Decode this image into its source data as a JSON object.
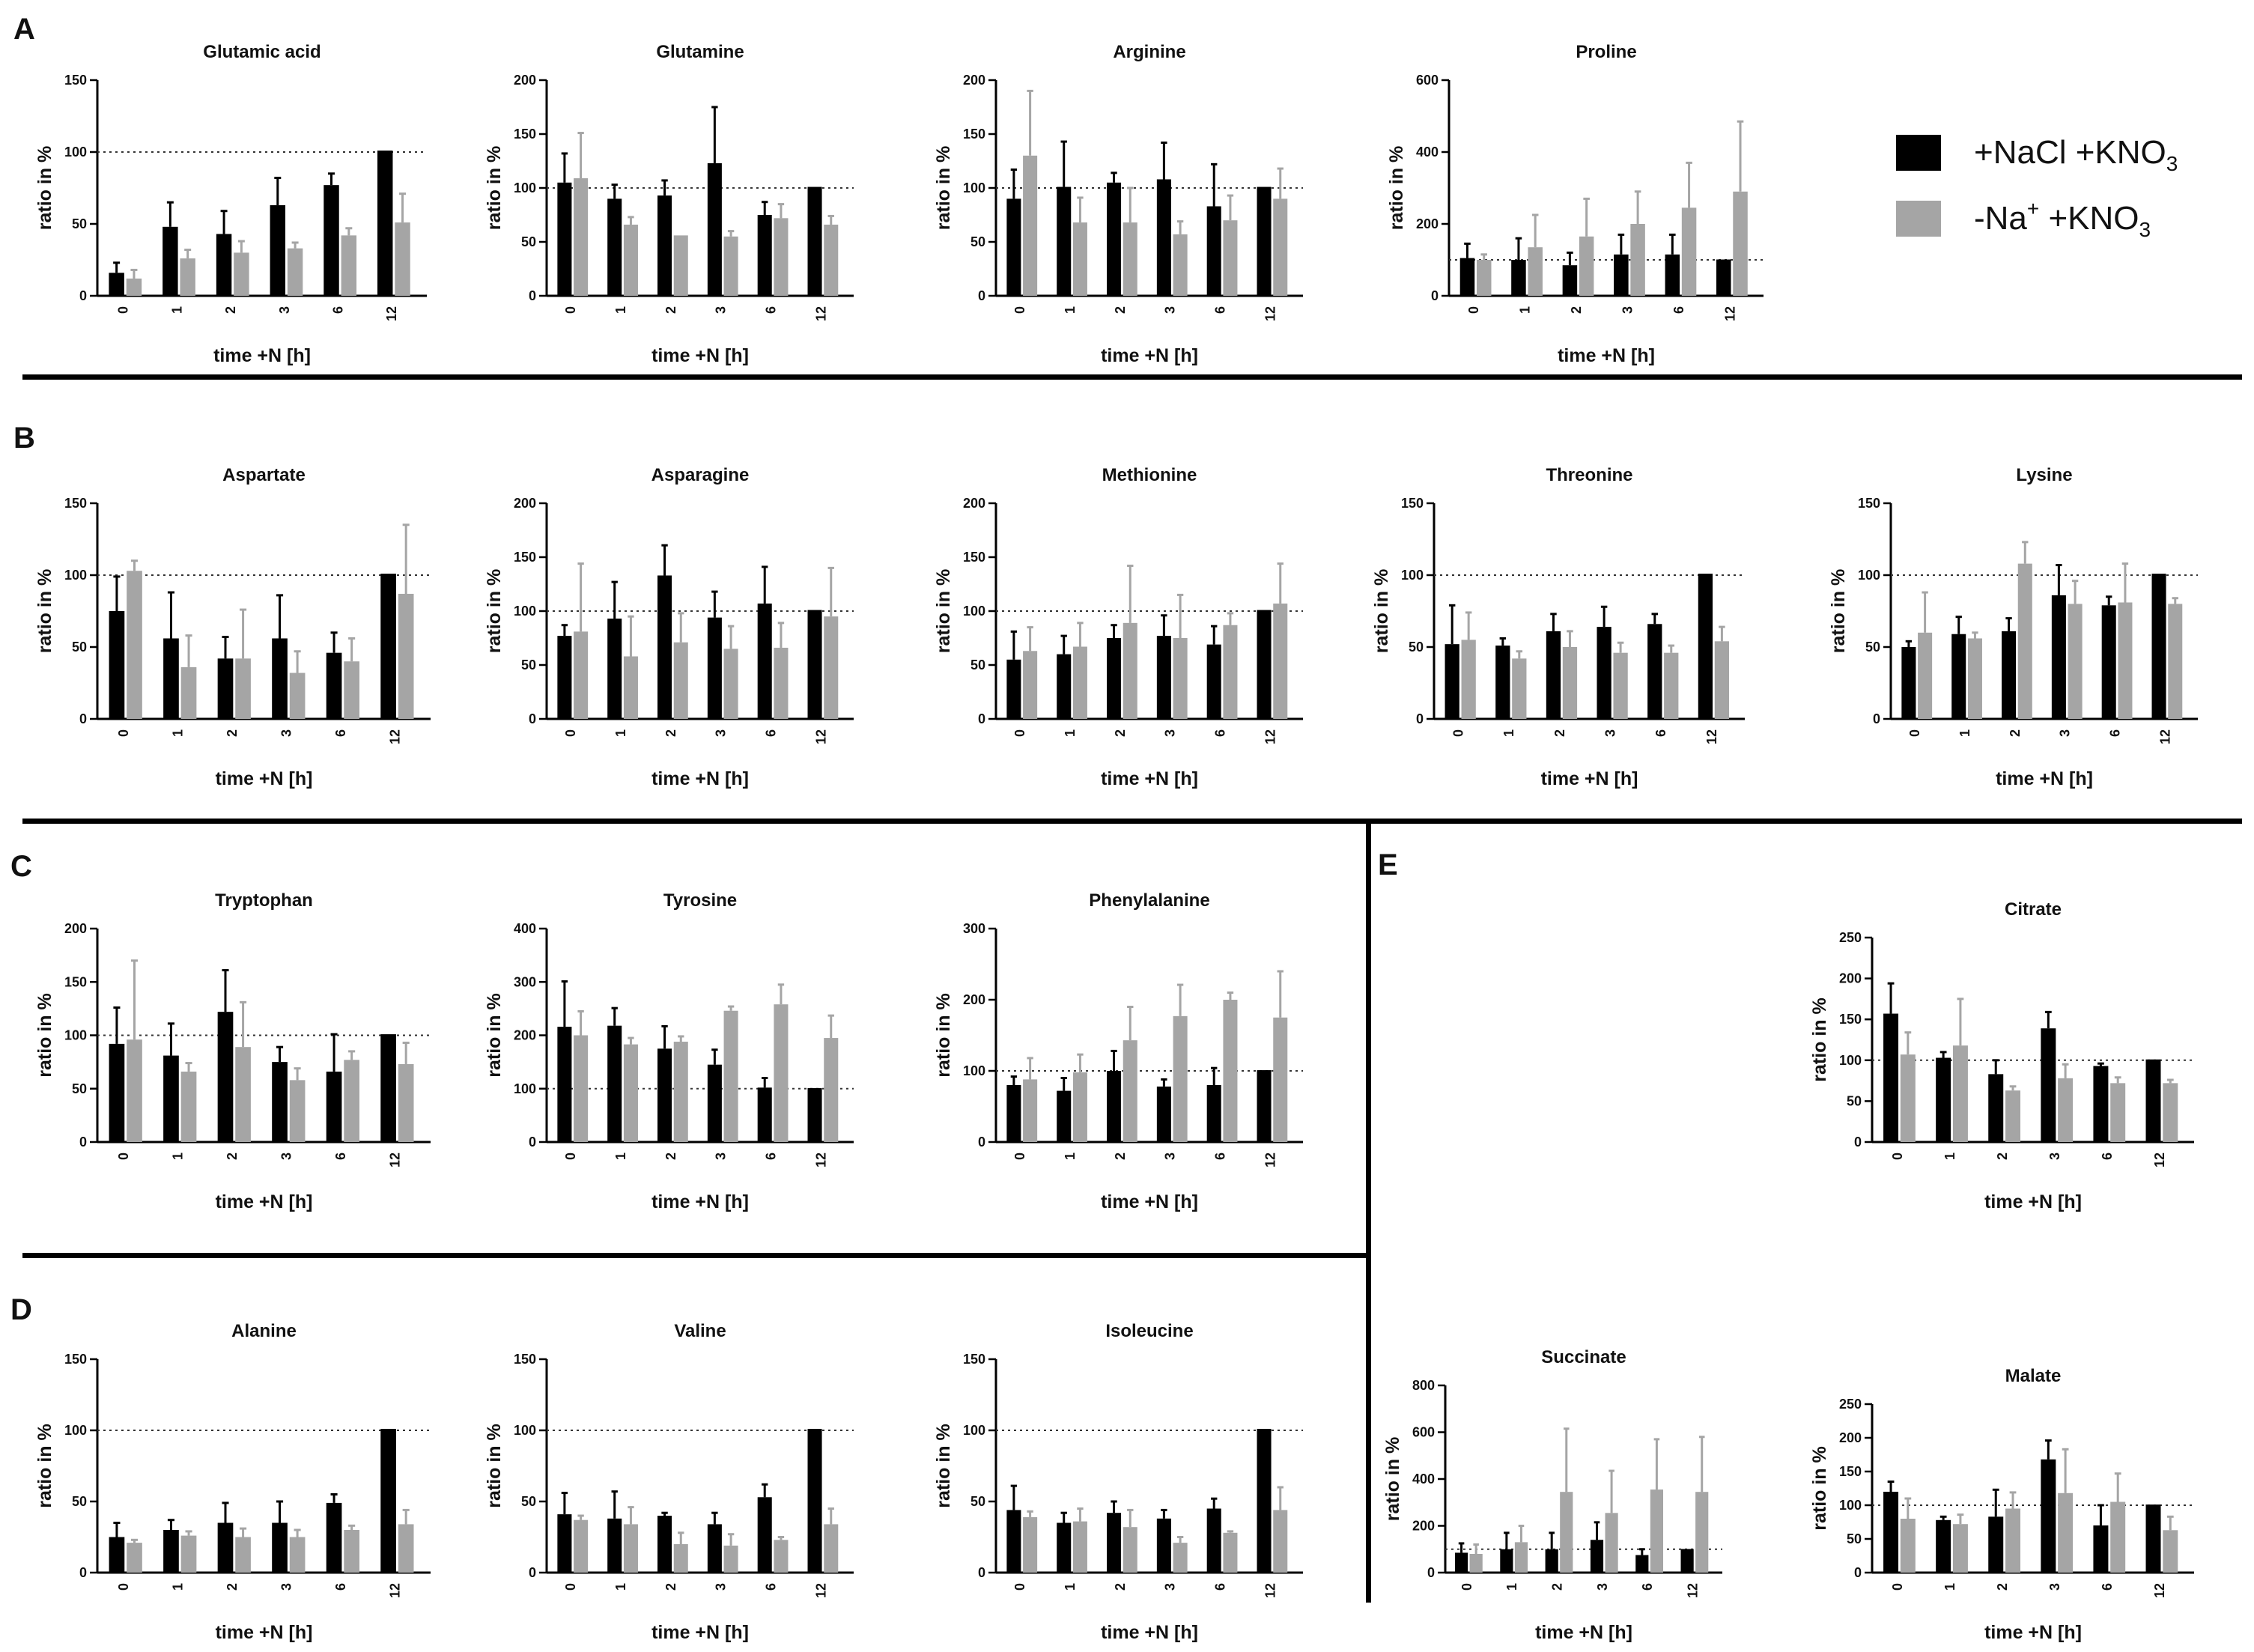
{
  "colors": {
    "nacl": "#000000",
    "na_free": "#a5a5a5",
    "divider": "#000000"
  },
  "panel_labels": [
    "A",
    "B",
    "C",
    "D",
    "E"
  ],
  "legend": [
    {
      "label": "+NaCl +KNO",
      "sub": "3",
      "color": "#000000"
    },
    {
      "label": "-Na",
      "sup": "+",
      "tail": " +KNO",
      "sub": "3",
      "color": "#a5a5a5"
    }
  ],
  "chart_data": [
    {
      "type": "bar",
      "title": "Glutamic acid",
      "xlabel": "time +N [h]",
      "ylabel": "ratio in %",
      "categories": [
        "0",
        "1",
        "2",
        "3",
        "6",
        "12"
      ],
      "ylim": [
        0,
        150
      ],
      "yticks": [
        0,
        50,
        100,
        150
      ],
      "reference_line": 100,
      "series": [
        {
          "name": "+NaCl +KNO3",
          "values": [
            16,
            48,
            43,
            63,
            77,
            101
          ],
          "errors": [
            7,
            17,
            16,
            19,
            8,
            0
          ]
        },
        {
          "name": "-Na+ +KNO3",
          "values": [
            12,
            26,
            30,
            33,
            42,
            51
          ],
          "errors": [
            6,
            6,
            8,
            4,
            5,
            20
          ]
        }
      ]
    },
    {
      "type": "bar",
      "title": "Glutamine",
      "xlabel": "time +N [h]",
      "ylabel": "ratio in %",
      "categories": [
        "0",
        "1",
        "2",
        "3",
        "6",
        "12"
      ],
      "ylim": [
        0,
        200
      ],
      "yticks": [
        0,
        50,
        100,
        150,
        200
      ],
      "reference_line": 100,
      "series": [
        {
          "name": "+NaCl +KNO3",
          "values": [
            105,
            90,
            93,
            123,
            75,
            101
          ],
          "errors": [
            27,
            13,
            14,
            52,
            12,
            0
          ]
        },
        {
          "name": "-Na+ +KNO3",
          "values": [
            109,
            66,
            56,
            55,
            72,
            66
          ],
          "errors": [
            42,
            7,
            0,
            5,
            13,
            8
          ]
        }
      ]
    },
    {
      "type": "bar",
      "title": "Arginine",
      "xlabel": "time +N [h]",
      "ylabel": "ratio in %",
      "categories": [
        "0",
        "1",
        "2",
        "3",
        "6",
        "12"
      ],
      "ylim": [
        0,
        200
      ],
      "yticks": [
        0,
        50,
        100,
        150,
        200
      ],
      "reference_line": 100,
      "series": [
        {
          "name": "+NaCl +KNO3",
          "values": [
            90,
            101,
            105,
            108,
            83,
            101
          ],
          "errors": [
            27,
            42,
            9,
            34,
            39,
            0
          ]
        },
        {
          "name": "-Na+ +KNO3",
          "values": [
            130,
            68,
            68,
            57,
            70,
            90
          ],
          "errors": [
            60,
            23,
            32,
            12,
            23,
            28
          ]
        }
      ]
    },
    {
      "type": "bar",
      "title": "Proline",
      "xlabel": "time +N [h]",
      "ylabel": "ratio in %",
      "categories": [
        "0",
        "1",
        "2",
        "3",
        "6",
        "12"
      ],
      "ylim": [
        0,
        600
      ],
      "yticks": [
        0,
        200,
        400,
        600
      ],
      "reference_line": 100,
      "series": [
        {
          "name": "+NaCl +KNO3",
          "values": [
            105,
            100,
            85,
            115,
            115,
            101
          ],
          "errors": [
            40,
            60,
            35,
            55,
            55,
            0
          ]
        },
        {
          "name": "-Na+ +KNO3",
          "values": [
            100,
            135,
            165,
            200,
            245,
            290
          ],
          "errors": [
            15,
            90,
            105,
            90,
            125,
            195
          ]
        }
      ]
    },
    {
      "type": "bar",
      "title": "Aspartate",
      "xlabel": "time +N [h]",
      "ylabel": "ratio in %",
      "categories": [
        "0",
        "1",
        "2",
        "3",
        "6",
        "12"
      ],
      "ylim": [
        0,
        150
      ],
      "yticks": [
        0,
        50,
        100,
        150
      ],
      "reference_line": 100,
      "series": [
        {
          "name": "+NaCl +KNO3",
          "values": [
            75,
            56,
            42,
            56,
            46,
            101
          ],
          "errors": [
            24,
            32,
            15,
            30,
            14,
            0
          ]
        },
        {
          "name": "-Na+ +KNO3",
          "values": [
            103,
            36,
            42,
            32,
            40,
            87
          ],
          "errors": [
            7,
            22,
            34,
            15,
            16,
            48
          ]
        }
      ]
    },
    {
      "type": "bar",
      "title": "Asparagine",
      "xlabel": "time +N [h]",
      "ylabel": "ratio in %",
      "categories": [
        "0",
        "1",
        "2",
        "3",
        "6",
        "12"
      ],
      "ylim": [
        0,
        200
      ],
      "yticks": [
        0,
        50,
        100,
        150,
        200
      ],
      "reference_line": 100,
      "series": [
        {
          "name": "+NaCl +KNO3",
          "values": [
            77,
            93,
            133,
            94,
            107,
            101
          ],
          "errors": [
            10,
            34,
            28,
            24,
            34,
            0
          ]
        },
        {
          "name": "-Na+ +KNO3",
          "values": [
            81,
            58,
            71,
            65,
            66,
            95
          ],
          "errors": [
            63,
            37,
            27,
            21,
            23,
            45
          ]
        }
      ]
    },
    {
      "type": "bar",
      "title": "Methionine",
      "xlabel": "time +N [h]",
      "ylabel": "ratio in %",
      "categories": [
        "0",
        "1",
        "2",
        "3",
        "6",
        "12"
      ],
      "ylim": [
        0,
        200
      ],
      "yticks": [
        0,
        50,
        100,
        150,
        200
      ],
      "reference_line": 100,
      "series": [
        {
          "name": "+NaCl +KNO3",
          "values": [
            55,
            60,
            75,
            77,
            69,
            101
          ],
          "errors": [
            26,
            17,
            12,
            19,
            17,
            0
          ]
        },
        {
          "name": "-Na+ +KNO3",
          "values": [
            63,
            67,
            89,
            75,
            87,
            107
          ],
          "errors": [
            22,
            22,
            53,
            40,
            11,
            37
          ]
        }
      ]
    },
    {
      "type": "bar",
      "title": "Threonine",
      "xlabel": "time +N [h]",
      "ylabel": "ratio in %",
      "categories": [
        "0",
        "1",
        "2",
        "3",
        "6",
        "12"
      ],
      "ylim": [
        0,
        150
      ],
      "yticks": [
        0,
        50,
        100,
        150
      ],
      "reference_line": 100,
      "series": [
        {
          "name": "+NaCl +KNO3",
          "values": [
            52,
            51,
            61,
            64,
            66,
            101
          ],
          "errors": [
            27,
            5,
            12,
            14,
            7,
            0
          ]
        },
        {
          "name": "-Na+ +KNO3",
          "values": [
            55,
            42,
            50,
            46,
            46,
            54
          ],
          "errors": [
            19,
            5,
            11,
            7,
            5,
            10
          ]
        }
      ]
    },
    {
      "type": "bar",
      "title": "Lysine",
      "xlabel": "time +N [h]",
      "ylabel": "ratio in %",
      "categories": [
        "0",
        "1",
        "2",
        "3",
        "6",
        "12"
      ],
      "ylim": [
        0,
        150
      ],
      "yticks": [
        0,
        50,
        100,
        150
      ],
      "reference_line": 100,
      "series": [
        {
          "name": "+NaCl +KNO3",
          "values": [
            50,
            59,
            61,
            86,
            79,
            101
          ],
          "errors": [
            4,
            12,
            9,
            21,
            6,
            0
          ]
        },
        {
          "name": "-Na+ +KNO3",
          "values": [
            60,
            56,
            108,
            80,
            81,
            80
          ],
          "errors": [
            28,
            4,
            15,
            16,
            27,
            4
          ]
        }
      ]
    },
    {
      "type": "bar",
      "title": "Tryptophan",
      "xlabel": "time +N [h]",
      "ylabel": "ratio in %",
      "categories": [
        "0",
        "1",
        "2",
        "3",
        "6",
        "12"
      ],
      "ylim": [
        0,
        200
      ],
      "yticks": [
        0,
        50,
        100,
        150,
        200
      ],
      "reference_line": 100,
      "series": [
        {
          "name": "+NaCl +KNO3",
          "values": [
            92,
            81,
            122,
            75,
            66,
            101
          ],
          "errors": [
            34,
            30,
            39,
            14,
            35,
            0
          ]
        },
        {
          "name": "-Na+ +KNO3",
          "values": [
            96,
            66,
            89,
            58,
            77,
            73
          ],
          "errors": [
            74,
            8,
            42,
            11,
            8,
            20
          ]
        }
      ]
    },
    {
      "type": "bar",
      "title": "Tyrosine",
      "xlabel": "time +N [h]",
      "ylabel": "ratio in %",
      "categories": [
        "0",
        "1",
        "2",
        "3",
        "6",
        "12"
      ],
      "ylim": [
        0,
        400
      ],
      "yticks": [
        0,
        100,
        200,
        300,
        400
      ],
      "reference_line": 100,
      "series": [
        {
          "name": "+NaCl +KNO3",
          "values": [
            216,
            218,
            175,
            145,
            102,
            101
          ],
          "errors": [
            85,
            33,
            42,
            28,
            18,
            0
          ]
        },
        {
          "name": "-Na+ +KNO3",
          "values": [
            200,
            183,
            188,
            246,
            258,
            195
          ],
          "errors": [
            45,
            12,
            10,
            8,
            37,
            42
          ]
        }
      ]
    },
    {
      "type": "bar",
      "title": "Phenylalanine",
      "xlabel": "time +N [h]",
      "ylabel": "ratio in %",
      "categories": [
        "0",
        "1",
        "2",
        "3",
        "6",
        "12"
      ],
      "ylim": [
        0,
        300
      ],
      "yticks": [
        0,
        100,
        200,
        300
      ],
      "reference_line": 100,
      "series": [
        {
          "name": "+NaCl +KNO3",
          "values": [
            80,
            72,
            100,
            78,
            80,
            101
          ],
          "errors": [
            12,
            18,
            28,
            10,
            24,
            0
          ]
        },
        {
          "name": "-Na+ +KNO3",
          "values": [
            88,
            98,
            143,
            177,
            200,
            175
          ],
          "errors": [
            30,
            25,
            47,
            44,
            10,
            65
          ]
        }
      ]
    },
    {
      "type": "bar",
      "title": "Alanine",
      "xlabel": "time +N [h]",
      "ylabel": "ratio in %",
      "categories": [
        "0",
        "1",
        "2",
        "3",
        "6",
        "12"
      ],
      "ylim": [
        0,
        150
      ],
      "yticks": [
        0,
        50,
        100,
        150
      ],
      "reference_line": 100,
      "series": [
        {
          "name": "+NaCl +KNO3",
          "values": [
            25,
            30,
            35,
            35,
            49,
            101
          ],
          "errors": [
            10,
            7,
            14,
            15,
            6,
            0
          ]
        },
        {
          "name": "-Na+ +KNO3",
          "values": [
            21,
            26,
            25,
            25,
            30,
            34
          ],
          "errors": [
            2,
            3,
            6,
            5,
            3,
            10
          ]
        }
      ]
    },
    {
      "type": "bar",
      "title": "Valine",
      "xlabel": "time +N [h]",
      "ylabel": "ratio in %",
      "categories": [
        "0",
        "1",
        "2",
        "3",
        "6",
        "12"
      ],
      "ylim": [
        0,
        150
      ],
      "yticks": [
        0,
        50,
        100,
        150
      ],
      "reference_line": 100,
      "series": [
        {
          "name": "+NaCl +KNO3",
          "values": [
            41,
            38,
            40,
            34,
            53,
            101
          ],
          "errors": [
            15,
            19,
            2,
            8,
            9,
            0
          ]
        },
        {
          "name": "-Na+ +KNO3",
          "values": [
            37,
            34,
            20,
            19,
            23,
            34
          ],
          "errors": [
            3,
            12,
            8,
            8,
            2,
            11
          ]
        }
      ]
    },
    {
      "type": "bar",
      "title": "Isoleucine",
      "xlabel": "time +N [h]",
      "ylabel": "ratio in %",
      "categories": [
        "0",
        "1",
        "2",
        "3",
        "6",
        "12"
      ],
      "ylim": [
        0,
        150
      ],
      "yticks": [
        0,
        50,
        100,
        150
      ],
      "reference_line": 100,
      "series": [
        {
          "name": "+NaCl +KNO3",
          "values": [
            44,
            35,
            42,
            38,
            45,
            101
          ],
          "errors": [
            17,
            7,
            8,
            6,
            7,
            0
          ]
        },
        {
          "name": "-Na+ +KNO3",
          "values": [
            39,
            36,
            32,
            21,
            28,
            44
          ],
          "errors": [
            4,
            9,
            12,
            4,
            1,
            16
          ]
        }
      ]
    },
    {
      "type": "bar",
      "title": "Citrate",
      "xlabel": "time +N [h]",
      "ylabel": "ratio in %",
      "categories": [
        "0",
        "1",
        "2",
        "3",
        "6",
        "12"
      ],
      "ylim": [
        0,
        250
      ],
      "yticks": [
        0,
        50,
        100,
        150,
        200,
        250
      ],
      "reference_line": 100,
      "series": [
        {
          "name": "+NaCl +KNO3",
          "values": [
            157,
            103,
            83,
            139,
            93,
            101
          ],
          "errors": [
            37,
            7,
            17,
            20,
            3,
            0
          ]
        },
        {
          "name": "-Na+ +KNO3",
          "values": [
            107,
            118,
            63,
            78,
            72,
            72
          ],
          "errors": [
            27,
            57,
            5,
            17,
            7,
            4
          ]
        }
      ]
    },
    {
      "type": "bar",
      "title": "Succinate",
      "xlabel": "time +N [h]",
      "ylabel": "ratio in %",
      "categories": [
        "0",
        "1",
        "2",
        "3",
        "6",
        "12"
      ],
      "ylim": [
        0,
        800
      ],
      "yticks": [
        0,
        200,
        400,
        600,
        800
      ],
      "reference_line": 100,
      "series": [
        {
          "name": "+NaCl +KNO3",
          "values": [
            85,
            100,
            100,
            140,
            75,
            101
          ],
          "errors": [
            40,
            70,
            70,
            75,
            25,
            0
          ]
        },
        {
          "name": "-Na+ +KNO3",
          "values": [
            80,
            130,
            345,
            255,
            355,
            345
          ],
          "errors": [
            40,
            70,
            270,
            180,
            215,
            235
          ]
        }
      ]
    },
    {
      "type": "bar",
      "title": "Malate",
      "xlabel": "time +N [h]",
      "ylabel": "ratio in %",
      "categories": [
        "0",
        "1",
        "2",
        "3",
        "6",
        "12"
      ],
      "ylim": [
        0,
        250
      ],
      "yticks": [
        0,
        50,
        100,
        150,
        200,
        250
      ],
      "reference_line": 100,
      "series": [
        {
          "name": "+NaCl +KNO3",
          "values": [
            120,
            78,
            83,
            168,
            70,
            101
          ],
          "errors": [
            15,
            5,
            40,
            28,
            30,
            0
          ]
        },
        {
          "name": "-Na+ +KNO3",
          "values": [
            80,
            72,
            95,
            118,
            105,
            63
          ],
          "errors": [
            30,
            14,
            24,
            65,
            42,
            20
          ]
        }
      ]
    }
  ]
}
